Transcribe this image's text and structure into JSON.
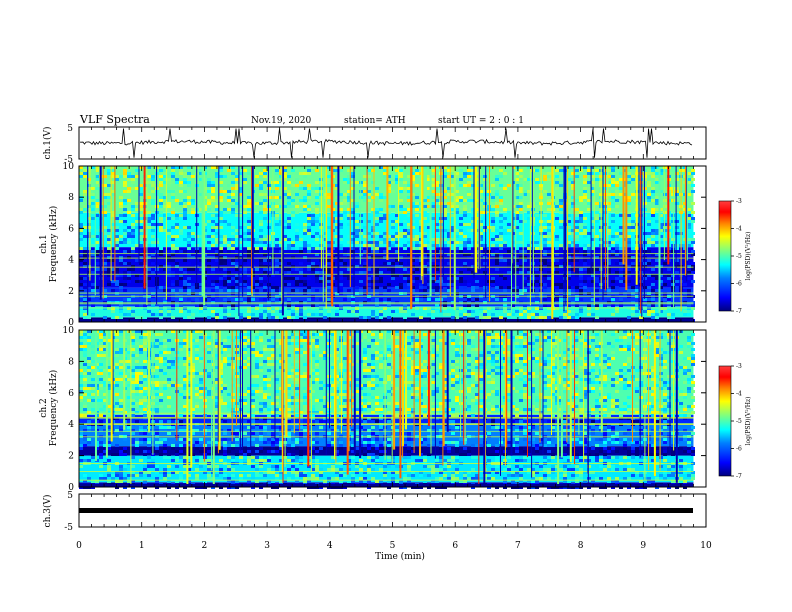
{
  "header": {
    "title": "VLF Spectra",
    "date": "Nov.19, 2020",
    "station": "station= ATH",
    "start": "start  UT =   2 : 0  : 1"
  },
  "colors": {
    "trace": "#000000",
    "colormap": [
      "#00007f",
      "#0000ff",
      "#007fff",
      "#00ffff",
      "#7fff7f",
      "#ffff00",
      "#ff7f00",
      "#ff0000",
      "#7f0000"
    ]
  },
  "chart_data": [
    {
      "type": "line",
      "panel": "ch1-waveform",
      "ylabel": "ch.1(V)",
      "ylim": [
        -5,
        5
      ],
      "yticks": [
        "5",
        "-5"
      ],
      "xlim": [
        0,
        10
      ],
      "note_values": "noisy trace centered near 0 V with spikes, ending at about 9.8 min"
    },
    {
      "type": "heatmap",
      "panel": "ch1-spectrogram",
      "ylabel": "ch.1\nFrequency (kHz)",
      "ylim": [
        0,
        10
      ],
      "yticks": [
        "0",
        "2",
        "4",
        "6",
        "8",
        "10"
      ],
      "xlim": [
        0,
        10
      ],
      "data_end_min": 9.8,
      "colorbar": {
        "label": "log(PSD)(V²/Hz)",
        "range": [
          -7,
          -3
        ],
        "ticks": [
          "-3",
          "-4",
          "-5",
          "-6",
          "-7"
        ]
      },
      "bands_khz": [
        {
          "from": 0,
          "to": 0.3,
          "level": -7
        },
        {
          "from": 0.3,
          "to": 1.0,
          "level": -5.2
        },
        {
          "from": 1.0,
          "to": 2.2,
          "level": -6.2
        },
        {
          "from": 2.2,
          "to": 4.8,
          "level": -6.6
        },
        {
          "from": 4.8,
          "to": 7.0,
          "level": -5.3
        },
        {
          "from": 7.0,
          "to": 10.0,
          "level": -4.9
        }
      ]
    },
    {
      "type": "heatmap",
      "panel": "ch2-spectrogram",
      "ylabel": "ch.2\nFrequency (kHz)",
      "ylim": [
        0,
        10
      ],
      "yticks": [
        "0",
        "2",
        "4",
        "6",
        "8",
        "10"
      ],
      "xlim": [
        0,
        10
      ],
      "data_end_min": 9.8,
      "colorbar": {
        "label": "log(PSD)(V²/Hz)",
        "range": [
          -7,
          -3
        ],
        "ticks": [
          "-3",
          "-4",
          "-5",
          "-6",
          "-7"
        ]
      },
      "bands_khz": [
        {
          "from": 0,
          "to": 0.3,
          "level": -6.8
        },
        {
          "from": 0.3,
          "to": 2.0,
          "level": -5.4
        },
        {
          "from": 2.0,
          "to": 2.6,
          "level": -6.9
        },
        {
          "from": 2.6,
          "to": 4.0,
          "level": -5.8
        },
        {
          "from": 4.0,
          "to": 4.6,
          "level": -6.3
        },
        {
          "from": 4.6,
          "to": 10.0,
          "level": -5.0
        }
      ]
    },
    {
      "type": "line",
      "panel": "ch3-waveform",
      "ylabel": "ch.3(V)",
      "ylim": [
        -5,
        5
      ],
      "yticks": [
        "5",
        "-5"
      ],
      "xlim": [
        0,
        10
      ],
      "note_values": "flat thick line near -1 V"
    }
  ],
  "xaxis": {
    "label": "Time (min)",
    "ticks": [
      "0",
      "1",
      "2",
      "3",
      "4",
      "5",
      "6",
      "7",
      "8",
      "9",
      "10"
    ]
  }
}
